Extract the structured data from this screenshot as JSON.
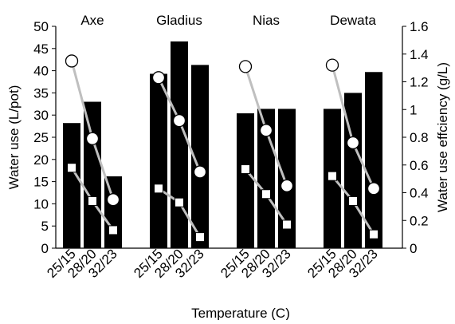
{
  "chart_data": {
    "type": "bar",
    "title": "",
    "xlabel": "Temperature (C)",
    "ylabel": "Water use (L/pot)",
    "y2label": "Water use effciency (g/L)",
    "ylim": [
      0,
      50
    ],
    "y2lim": [
      0,
      1.6
    ],
    "yticks": [
      "0",
      "5",
      "10",
      "15",
      "20",
      "25",
      "30",
      "35",
      "40",
      "45",
      "50"
    ],
    "y2ticks": [
      "0",
      "0.2",
      "0.4",
      "0.6",
      "0.8",
      "1",
      "1.2",
      "1.4",
      "1.6"
    ],
    "grid": false,
    "groups": [
      {
        "name": "Axe",
        "categories": [
          "25/15",
          "28/20",
          "32/23"
        ],
        "water_use": [
          28.2,
          33.0,
          16.2
        ],
        "efficiency_circle": [
          1.35,
          0.79,
          0.35
        ],
        "efficiency_square": [
          0.58,
          0.34,
          0.13
        ]
      },
      {
        "name": "Gladius",
        "categories": [
          "25/15",
          "28/20",
          "32/23"
        ],
        "water_use": [
          39.3,
          46.6,
          41.3
        ],
        "efficiency_circle": [
          1.23,
          0.92,
          0.55
        ],
        "efficiency_square": [
          0.43,
          0.33,
          0.08
        ]
      },
      {
        "name": "Nias",
        "categories": [
          "25/15",
          "28/20",
          "32/23"
        ],
        "water_use": [
          30.4,
          31.4,
          31.4
        ],
        "efficiency_circle": [
          1.31,
          0.85,
          0.45
        ],
        "efficiency_square": [
          0.57,
          0.39,
          0.17
        ]
      },
      {
        "name": "Dewata",
        "categories": [
          "25/15",
          "28/20",
          "32/23"
        ],
        "water_use": [
          31.4,
          35.0,
          39.7
        ],
        "efficiency_circle": [
          1.32,
          0.76,
          0.43
        ],
        "efficiency_square": [
          0.52,
          0.34,
          0.1
        ]
      }
    ],
    "colors": {
      "bar": "#000000",
      "line": "#bfbfbf",
      "marker_fill": "#ffffff",
      "marker_stroke": "#000000",
      "axis": "#000000"
    }
  }
}
